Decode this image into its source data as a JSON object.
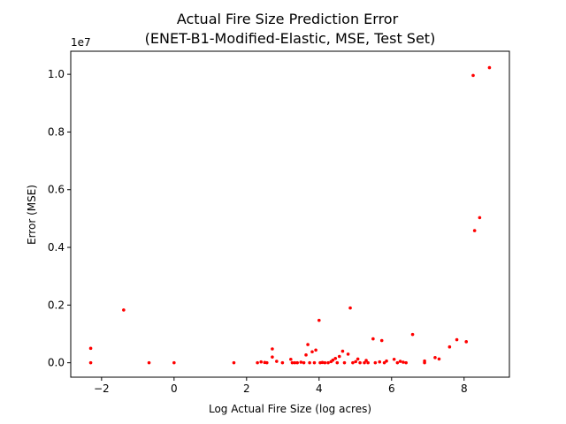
{
  "chart_data": {
    "type": "scatter",
    "title_lines": [
      "Actual Fire Size Prediction Error",
      "(ENET-B1-Modified-Elastic, MSE, Test Set)"
    ],
    "xlabel": "Log Actual Fire Size (log acres)",
    "ylabel": "Error (MSE)",
    "y_offset_label": "1e7",
    "xlim": [
      -2.85,
      9.25
    ],
    "ylim": [
      -0.05,
      1.08
    ],
    "x_ticks": [
      -2,
      0,
      2,
      4,
      6,
      8
    ],
    "x_tick_labels": [
      "−2",
      "0",
      "2",
      "4",
      "6",
      "8"
    ],
    "y_ticks": [
      0.0,
      0.2,
      0.4,
      0.6,
      0.8,
      1.0
    ],
    "y_tick_labels": [
      "0.0",
      "0.2",
      "0.4",
      "0.6",
      "0.8",
      "1.0"
    ],
    "grid": false,
    "point_color": "#ff0000",
    "points": [
      {
        "x": -2.3,
        "y": 0.05
      },
      {
        "x": -2.3,
        "y": 0.0
      },
      {
        "x": -1.39,
        "y": 0.183
      },
      {
        "x": -0.69,
        "y": 0.0
      },
      {
        "x": 0.0,
        "y": 0.0
      },
      {
        "x": 1.65,
        "y": 0.0
      },
      {
        "x": 2.3,
        "y": 0.0
      },
      {
        "x": 2.4,
        "y": 0.003
      },
      {
        "x": 2.5,
        "y": 0.001
      },
      {
        "x": 2.56,
        "y": 0.0
      },
      {
        "x": 2.71,
        "y": 0.048
      },
      {
        "x": 2.71,
        "y": 0.02
      },
      {
        "x": 2.83,
        "y": 0.005
      },
      {
        "x": 2.99,
        "y": 0.0
      },
      {
        "x": 3.22,
        "y": 0.012
      },
      {
        "x": 3.26,
        "y": 0.0
      },
      {
        "x": 3.33,
        "y": 0.0
      },
      {
        "x": 3.4,
        "y": 0.0
      },
      {
        "x": 3.5,
        "y": 0.002
      },
      {
        "x": 3.58,
        "y": 0.0
      },
      {
        "x": 3.64,
        "y": 0.027
      },
      {
        "x": 3.69,
        "y": 0.063
      },
      {
        "x": 3.74,
        "y": 0.0
      },
      {
        "x": 3.81,
        "y": 0.038
      },
      {
        "x": 3.87,
        "y": 0.0
      },
      {
        "x": 3.91,
        "y": 0.044
      },
      {
        "x": 4.0,
        "y": 0.147
      },
      {
        "x": 4.03,
        "y": 0.0
      },
      {
        "x": 4.09,
        "y": 0.001
      },
      {
        "x": 4.16,
        "y": 0.0
      },
      {
        "x": 4.25,
        "y": 0.0
      },
      {
        "x": 4.33,
        "y": 0.004
      },
      {
        "x": 4.38,
        "y": 0.009
      },
      {
        "x": 4.45,
        "y": 0.015
      },
      {
        "x": 4.5,
        "y": 0.0
      },
      {
        "x": 4.56,
        "y": 0.022
      },
      {
        "x": 4.65,
        "y": 0.04
      },
      {
        "x": 4.7,
        "y": 0.0
      },
      {
        "x": 4.8,
        "y": 0.03
      },
      {
        "x": 4.86,
        "y": 0.19
      },
      {
        "x": 4.93,
        "y": 0.0
      },
      {
        "x": 5.01,
        "y": 0.004
      },
      {
        "x": 5.07,
        "y": 0.013
      },
      {
        "x": 5.13,
        "y": 0.0
      },
      {
        "x": 5.25,
        "y": 0.0
      },
      {
        "x": 5.3,
        "y": 0.008
      },
      {
        "x": 5.35,
        "y": 0.0
      },
      {
        "x": 5.49,
        "y": 0.083
      },
      {
        "x": 5.55,
        "y": 0.0
      },
      {
        "x": 5.67,
        "y": 0.003
      },
      {
        "x": 5.73,
        "y": 0.077
      },
      {
        "x": 5.8,
        "y": 0.0
      },
      {
        "x": 5.86,
        "y": 0.006
      },
      {
        "x": 6.07,
        "y": 0.012
      },
      {
        "x": 6.16,
        "y": 0.0
      },
      {
        "x": 6.24,
        "y": 0.005
      },
      {
        "x": 6.32,
        "y": 0.002
      },
      {
        "x": 6.4,
        "y": 0.0
      },
      {
        "x": 6.58,
        "y": 0.098
      },
      {
        "x": 6.91,
        "y": 0.006
      },
      {
        "x": 6.91,
        "y": 0.0
      },
      {
        "x": 7.2,
        "y": 0.018
      },
      {
        "x": 7.31,
        "y": 0.013
      },
      {
        "x": 7.6,
        "y": 0.055
      },
      {
        "x": 7.8,
        "y": 0.08
      },
      {
        "x": 8.06,
        "y": 0.073
      },
      {
        "x": 8.25,
        "y": 0.996
      },
      {
        "x": 8.29,
        "y": 0.458
      },
      {
        "x": 8.43,
        "y": 0.503
      },
      {
        "x": 8.7,
        "y": 1.023
      }
    ]
  }
}
